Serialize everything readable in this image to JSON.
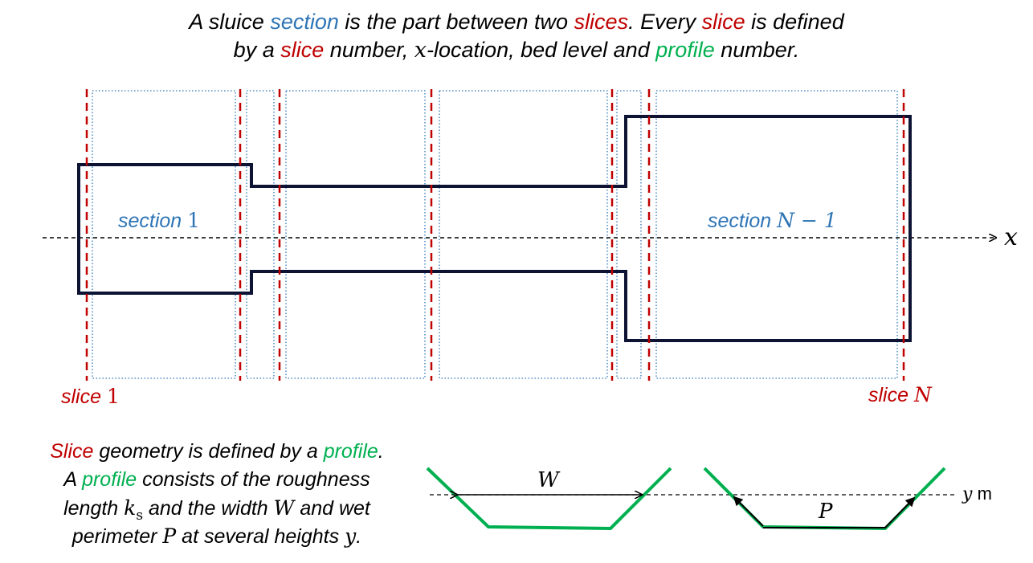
{
  "title": {
    "line1": [
      {
        "t": "A sluice ",
        "c": ""
      },
      {
        "t": "section",
        "c": "c-blue"
      },
      {
        "t": " is the part between two ",
        "c": ""
      },
      {
        "t": "slices",
        "c": "c-red"
      },
      {
        "t": ". Every ",
        "c": ""
      },
      {
        "t": "slice",
        "c": "c-red"
      },
      {
        "t": " is defined",
        "c": ""
      }
    ],
    "line2": [
      {
        "t": "by a ",
        "c": ""
      },
      {
        "t": "slice",
        "c": "c-red"
      },
      {
        "t": " number, ",
        "c": ""
      },
      {
        "t": "x",
        "c": "math"
      },
      {
        "t": "-location, bed level and ",
        "c": ""
      },
      {
        "t": "profile",
        "c": "c-green"
      },
      {
        "t": " number.",
        "c": ""
      }
    ]
  },
  "labels": {
    "section_first_word": "section",
    "section_first_num": "1",
    "section_last_word": "section",
    "section_last_math": "N − 1",
    "slice_first_word": "slice",
    "slice_first_num": "1",
    "slice_last_word": "slice",
    "slice_last_math": "N",
    "x_axis": "x",
    "width_symbol": "W",
    "perimeter_symbol": "P",
    "height_symbol": "y",
    "height_unit": "m"
  },
  "description": {
    "lines": [
      [
        {
          "t": "Slice",
          "c": "c-red"
        },
        {
          "t": " geometry is defined by a ",
          "c": ""
        },
        {
          "t": "profile",
          "c": "c-green"
        },
        {
          "t": ".",
          "c": ""
        }
      ],
      [
        {
          "t": "A ",
          "c": ""
        },
        {
          "t": "profile",
          "c": "c-green"
        },
        {
          "t": " consists of the roughness",
          "c": ""
        }
      ],
      [
        {
          "t": "length ",
          "c": ""
        },
        {
          "t": "k",
          "c": "math"
        },
        {
          "t": "s",
          "c": "mathsub"
        },
        {
          "t": " and the width ",
          "c": ""
        },
        {
          "t": "W",
          "c": "math"
        },
        {
          "t": " and wet",
          "c": ""
        }
      ],
      [
        {
          "t": "perimeter ",
          "c": ""
        },
        {
          "t": "P",
          "c": "math"
        },
        {
          "t": " at several heights ",
          "c": ""
        },
        {
          "t": "y",
          "c": "math"
        },
        {
          "t": ".",
          "c": ""
        }
      ]
    ]
  },
  "colors": {
    "section_blue": "#2e75b6",
    "slice_red": "#c00000",
    "profile_green": "#00b050",
    "outline_navy": "#0d1333"
  },
  "icons": {
    "axis_arrow": "arrow-right-icon"
  }
}
